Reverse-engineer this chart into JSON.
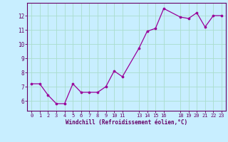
{
  "x": [
    0,
    1,
    2,
    3,
    4,
    5,
    6,
    7,
    8,
    9,
    10,
    11,
    13,
    14,
    15,
    16,
    18,
    19,
    20,
    21,
    22,
    23
  ],
  "y": [
    7.2,
    7.2,
    6.4,
    5.8,
    5.8,
    7.2,
    6.6,
    6.6,
    6.6,
    7.0,
    8.1,
    7.7,
    9.7,
    10.9,
    11.1,
    12.5,
    11.9,
    11.8,
    12.2,
    11.2,
    12.0,
    12.0
  ],
  "line_color": "#990099",
  "marker_color": "#990099",
  "bg_color": "#c8eeff",
  "grid_color": "#aaddcc",
  "xlabel": "Windchill (Refroidissement éolien,°C)",
  "xlabel_color": "#660066",
  "tick_color": "#660066",
  "axis_line_color": "#660066",
  "xlim": [
    -0.5,
    23.5
  ],
  "ylim": [
    5.3,
    12.9
  ],
  "yticks": [
    6,
    7,
    8,
    9,
    10,
    11,
    12
  ],
  "xticks": [
    0,
    1,
    2,
    3,
    4,
    5,
    6,
    7,
    8,
    9,
    10,
    11,
    13,
    14,
    15,
    16,
    18,
    19,
    20,
    21,
    22,
    23
  ]
}
